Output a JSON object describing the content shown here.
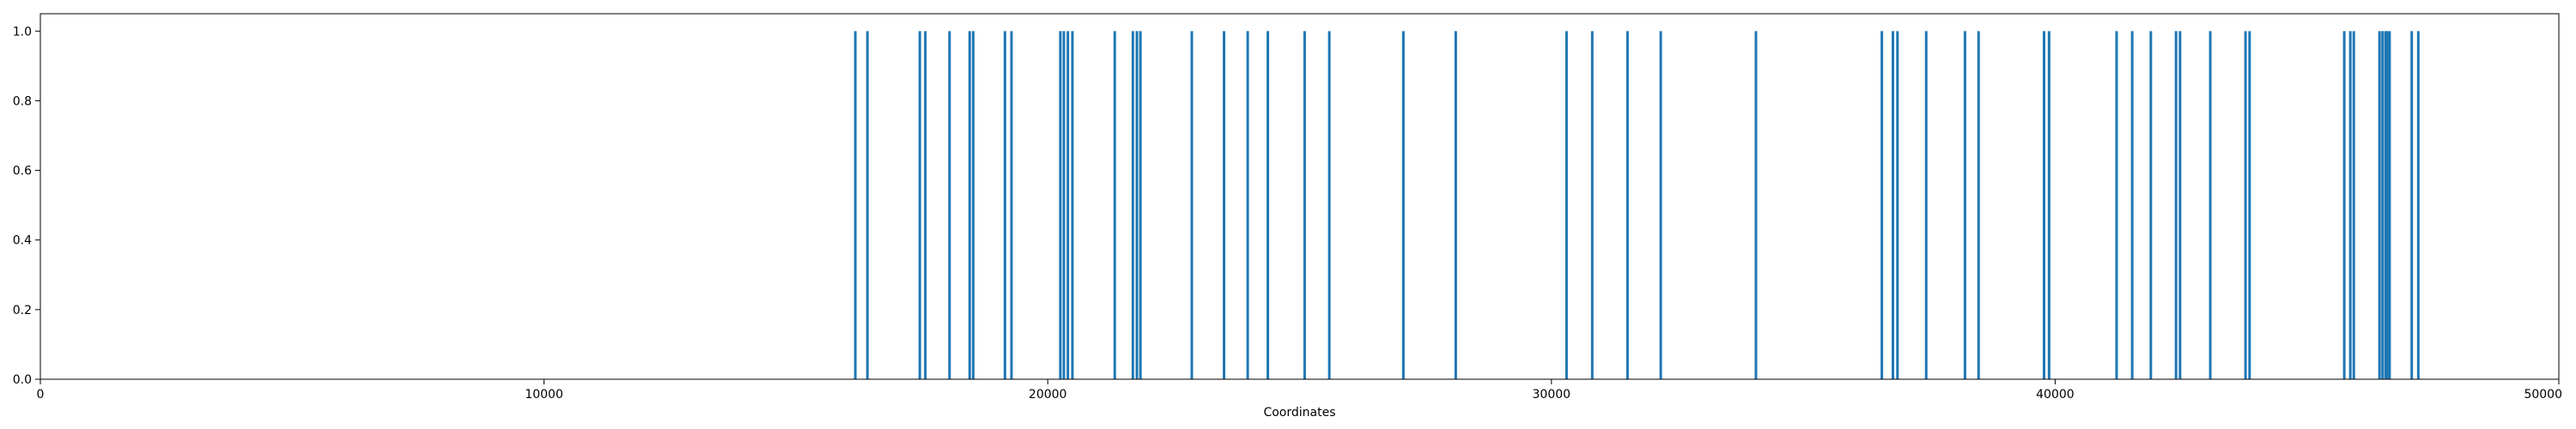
{
  "chart_data": {
    "type": "bar",
    "title": "",
    "xlabel": "Coordinates",
    "ylabel": "",
    "xlim": [
      0,
      50000
    ],
    "ylim": [
      0,
      1.05
    ],
    "xticks": [
      0,
      10000,
      20000,
      30000,
      40000,
      50000
    ],
    "yticks": [
      0.0,
      0.2,
      0.4,
      0.6,
      0.8,
      1.0
    ],
    "xtick_labels": [
      "0",
      "10000",
      "20000",
      "30000",
      "40000",
      "50000"
    ],
    "ytick_labels": [
      "0.0",
      "0.2",
      "0.4",
      "0.6",
      "0.8",
      "1.0"
    ],
    "grid": false,
    "legend": false,
    "bar_color": "#1f77b4",
    "bar_value": 1.0,
    "x": [
      16180,
      16420,
      17460,
      17570,
      18050,
      18450,
      18520,
      19150,
      19280,
      20250,
      20320,
      20400,
      20490,
      21330,
      21690,
      21770,
      21840,
      22860,
      23500,
      23970,
      24370,
      25100,
      25590,
      27060,
      28100,
      30300,
      30810,
      31510,
      32170,
      34060,
      36560,
      36780,
      36870,
      37440,
      38210,
      38480,
      39780,
      39880,
      41220,
      41530,
      41900,
      42400,
      42480,
      43080,
      43780,
      43860,
      45740,
      45860,
      45930,
      46440,
      46500,
      46560,
      46590,
      46640,
      47080,
      47210
    ]
  }
}
